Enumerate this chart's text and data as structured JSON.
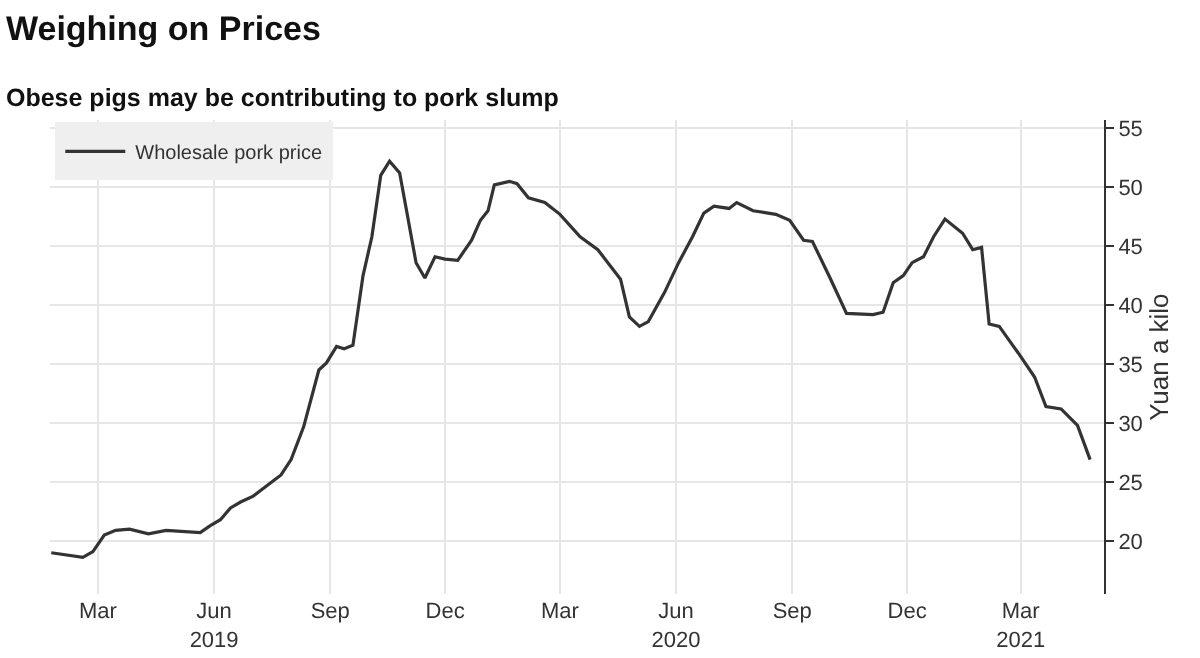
{
  "chart_data": {
    "type": "line",
    "title": "Weighing on Prices",
    "subtitle": "Obese pigs may be contributing to pork slump",
    "ylabel": "Yuan a kilo",
    "x": [
      "2019-01-23",
      "2019-02-17",
      "2019-02-25",
      "2019-03-06",
      "2019-03-15",
      "2019-03-26",
      "2019-04-10",
      "2019-04-24",
      "2019-05-21",
      "2019-05-29",
      "2019-06-06",
      "2019-06-14",
      "2019-06-22",
      "2019-07-02",
      "2019-07-13",
      "2019-07-24",
      "2019-08-01",
      "2019-08-11",
      "2019-08-23",
      "2019-08-29",
      "2019-09-06",
      "2019-09-12",
      "2019-09-19",
      "2019-09-27",
      "2019-10-04",
      "2019-10-11",
      "2019-10-18",
      "2019-10-26",
      "2019-11-01",
      "2019-11-08",
      "2019-11-15",
      "2019-11-23",
      "2019-12-01",
      "2019-12-11",
      "2019-12-22",
      "2019-12-29",
      "2020-01-04",
      "2020-01-09",
      "2020-01-21",
      "2020-01-27",
      "2020-02-05",
      "2020-02-18",
      "2020-03-01",
      "2020-03-17",
      "2020-03-31",
      "2020-04-18",
      "2020-04-25",
      "2020-05-03",
      "2020-05-10",
      "2020-05-23",
      "2020-06-03",
      "2020-06-14",
      "2020-06-23",
      "2020-07-01",
      "2020-07-13",
      "2020-07-19",
      "2020-08-01",
      "2020-08-19",
      "2020-08-30",
      "2020-09-10",
      "2020-09-17",
      "2020-10-01",
      "2020-10-14",
      "2020-11-04",
      "2020-11-12",
      "2020-11-20",
      "2020-11-28",
      "2020-12-05",
      "2020-12-14",
      "2020-12-22",
      "2020-12-31",
      "2021-01-14",
      "2021-01-22",
      "2021-01-29",
      "2021-02-04",
      "2021-02-12",
      "2021-02-28",
      "2021-03-12",
      "2021-03-21",
      "2021-04-02",
      "2021-04-15",
      "2021-04-25"
    ],
    "series": [
      {
        "name": "Wholesale pork price",
        "color": "#333333",
        "values": [
          19.0,
          18.6,
          19.1,
          20.5,
          20.9,
          21.0,
          20.6,
          20.9,
          20.7,
          21.3,
          21.8,
          22.8,
          23.3,
          23.8,
          24.7,
          25.6,
          26.9,
          29.7,
          34.5,
          35.1,
          36.5,
          36.3,
          36.6,
          42.5,
          45.8,
          51.0,
          52.2,
          51.2,
          47.7,
          43.6,
          42.3,
          44.1,
          43.9,
          43.8,
          45.5,
          47.2,
          48.0,
          50.2,
          50.5,
          50.3,
          49.1,
          48.7,
          47.7,
          45.8,
          44.7,
          42.2,
          39.0,
          38.2,
          38.6,
          41.1,
          43.6,
          45.8,
          47.8,
          48.4,
          48.2,
          48.7,
          48.0,
          47.7,
          47.2,
          45.5,
          45.4,
          42.3,
          39.3,
          39.2,
          39.4,
          41.9,
          42.5,
          43.6,
          44.1,
          45.8,
          47.3,
          46.1,
          44.7,
          44.9,
          38.4,
          38.2,
          35.8,
          33.9,
          31.4,
          31.2,
          29.8,
          26.9
        ]
      }
    ],
    "xlim": [
      "2019-01-22",
      "2021-05-06"
    ],
    "xticks": [
      {
        "value": "2019-03-01",
        "label": "Mar"
      },
      {
        "value": "2019-06-01",
        "label": "Jun\n2019"
      },
      {
        "value": "2019-09-01",
        "label": "Sep"
      },
      {
        "value": "2019-12-01",
        "label": "Dec"
      },
      {
        "value": "2020-03-01",
        "label": "Mar"
      },
      {
        "value": "2020-06-01",
        "label": "Jun\n2020"
      },
      {
        "value": "2020-09-01",
        "label": "Sep"
      },
      {
        "value": "2020-12-01",
        "label": "Dec"
      },
      {
        "value": "2021-03-01",
        "label": "Mar\n2021"
      }
    ],
    "ylim": [
      15.5,
      55.7
    ],
    "yticks": [
      20,
      25,
      30,
      35,
      40,
      45,
      50,
      55
    ],
    "grid": true,
    "legend": "top left",
    "marker": "none",
    "line_style": "solid"
  }
}
